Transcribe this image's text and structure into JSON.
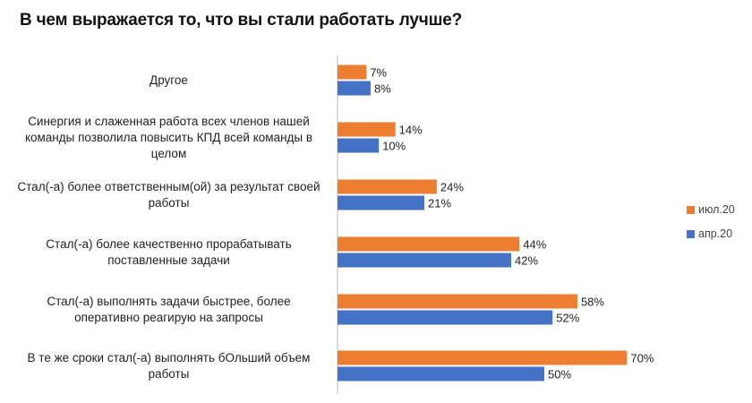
{
  "chart_data": {
    "type": "bar",
    "orientation": "horizontal",
    "title": "В чем выражается то, что вы стали работать лучше?",
    "categories": [
      "Другое",
      "Синергия и слаженная работа всех членов нашей команды позволила повысить КПД всей команды в целом",
      "Стал(-а) более ответственным(ой) за результат своей работы",
      "Стал(-а) более качественно прорабатывать поставленные задачи",
      "Стал(-а) выполнять задачи быстрее, более оперативно реагирую на запросы",
      "В те же сроки стал(-а) выполнять бОльший объем работы"
    ],
    "category_lines": [
      [
        "Другое"
      ],
      [
        "Синергия и слаженная работа всех членов нашей",
        "команды позволила повысить КПД всей команды в",
        "целом"
      ],
      [
        "Стал(-а) более ответственным(ой) за результат своей",
        "работы"
      ],
      [
        "Стал(-а) более качественно прорабатывать",
        "поставленные задачи"
      ],
      [
        "Стал(-а) выполнять задачи быстрее, более",
        "оперативно реагирую на запросы"
      ],
      [
        "В те же сроки стал(-а) выполнять бОльший объем",
        "работы"
      ]
    ],
    "series": [
      {
        "name": "июл.20",
        "color": "#ED7D31",
        "values": [
          7,
          14,
          24,
          44,
          58,
          70
        ],
        "labels": [
          "7%",
          "14%",
          "24%",
          "44%",
          "58%",
          "70%"
        ]
      },
      {
        "name": "апр.20",
        "color": "#4472C4",
        "values": [
          8,
          10,
          21,
          42,
          52,
          50
        ],
        "labels": [
          "8%",
          "10%",
          "21%",
          "42%",
          "52%",
          "50%"
        ]
      }
    ],
    "xlim": [
      0,
      100
    ],
    "grid": false,
    "legend_position": "right"
  }
}
